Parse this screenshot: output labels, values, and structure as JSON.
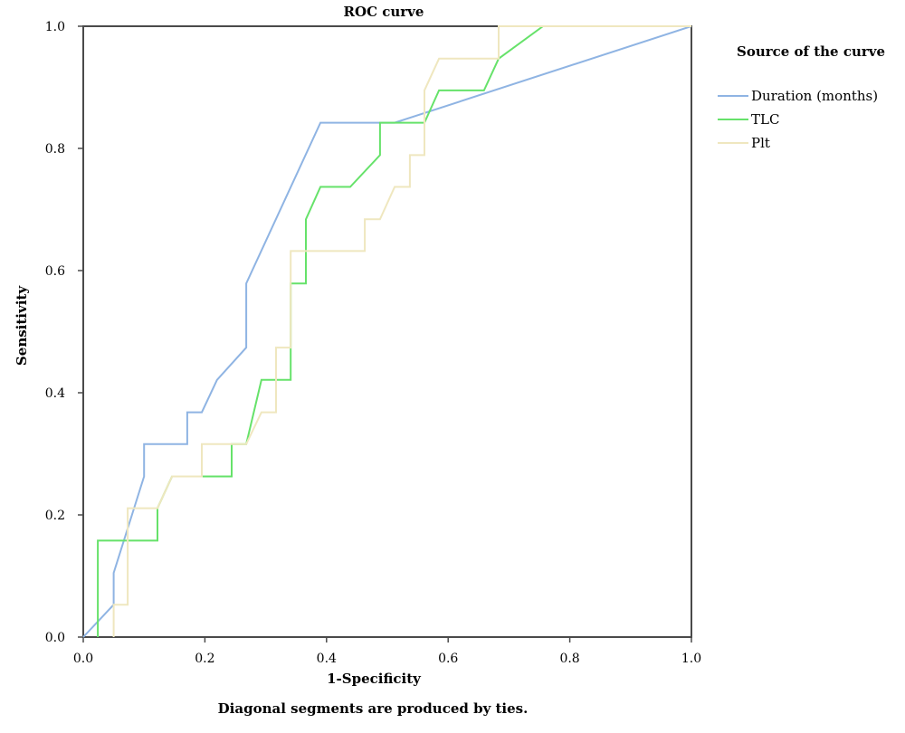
{
  "chart_data": {
    "type": "line",
    "title": "ROC curve",
    "xlabel": "1-Specificity",
    "ylabel": "Sensitivity",
    "xlim": [
      0,
      1
    ],
    "ylim": [
      0,
      1
    ],
    "xticks": [
      "0.0",
      "0.2",
      "0.4",
      "0.6",
      "0.8",
      "1.0"
    ],
    "yticks": [
      "0.0",
      "0.2",
      "0.4",
      "0.6",
      "0.8",
      "1.0"
    ],
    "grid": false,
    "legend": {
      "title": "Source of the curve",
      "placement": "right"
    },
    "footnote": "Diagonal segments are produced by ties.",
    "series": [
      {
        "name": "Duration (months)",
        "color": "#8fb4e3",
        "x": [
          0.0,
          0.05,
          0.05,
          0.1,
          0.1,
          0.171,
          0.171,
          0.195,
          0.22,
          0.268,
          0.268,
          0.39,
          0.512,
          1.0
        ],
        "y": [
          0.0,
          0.053,
          0.105,
          0.263,
          0.316,
          0.316,
          0.368,
          0.368,
          0.421,
          0.474,
          0.579,
          0.842,
          0.842,
          1.0
        ]
      },
      {
        "name": "TLC",
        "color": "#66e26a",
        "x": [
          0.024,
          0.024,
          0.122,
          0.122,
          0.146,
          0.244,
          0.244,
          0.268,
          0.293,
          0.341,
          0.341,
          0.366,
          0.366,
          0.39,
          0.439,
          0.488,
          0.488,
          0.561,
          0.585,
          0.659,
          0.683,
          0.756,
          1.0
        ],
        "y": [
          0.0,
          0.158,
          0.158,
          0.211,
          0.263,
          0.263,
          0.316,
          0.316,
          0.421,
          0.421,
          0.579,
          0.579,
          0.684,
          0.737,
          0.737,
          0.789,
          0.842,
          0.842,
          0.895,
          0.895,
          0.947,
          1.0,
          1.0
        ]
      },
      {
        "name": "Plt",
        "color": "#efe7bf",
        "x": [
          0.05,
          0.05,
          0.073,
          0.073,
          0.122,
          0.146,
          0.195,
          0.195,
          0.268,
          0.293,
          0.317,
          0.317,
          0.341,
          0.341,
          0.463,
          0.463,
          0.488,
          0.512,
          0.537,
          0.537,
          0.561,
          0.561,
          0.585,
          0.683,
          0.683,
          1.0
        ],
        "y": [
          0.0,
          0.053,
          0.053,
          0.211,
          0.211,
          0.263,
          0.263,
          0.316,
          0.316,
          0.368,
          0.368,
          0.474,
          0.474,
          0.632,
          0.632,
          0.684,
          0.684,
          0.737,
          0.737,
          0.789,
          0.789,
          0.895,
          0.947,
          0.947,
          1.0,
          1.0
        ]
      }
    ]
  }
}
